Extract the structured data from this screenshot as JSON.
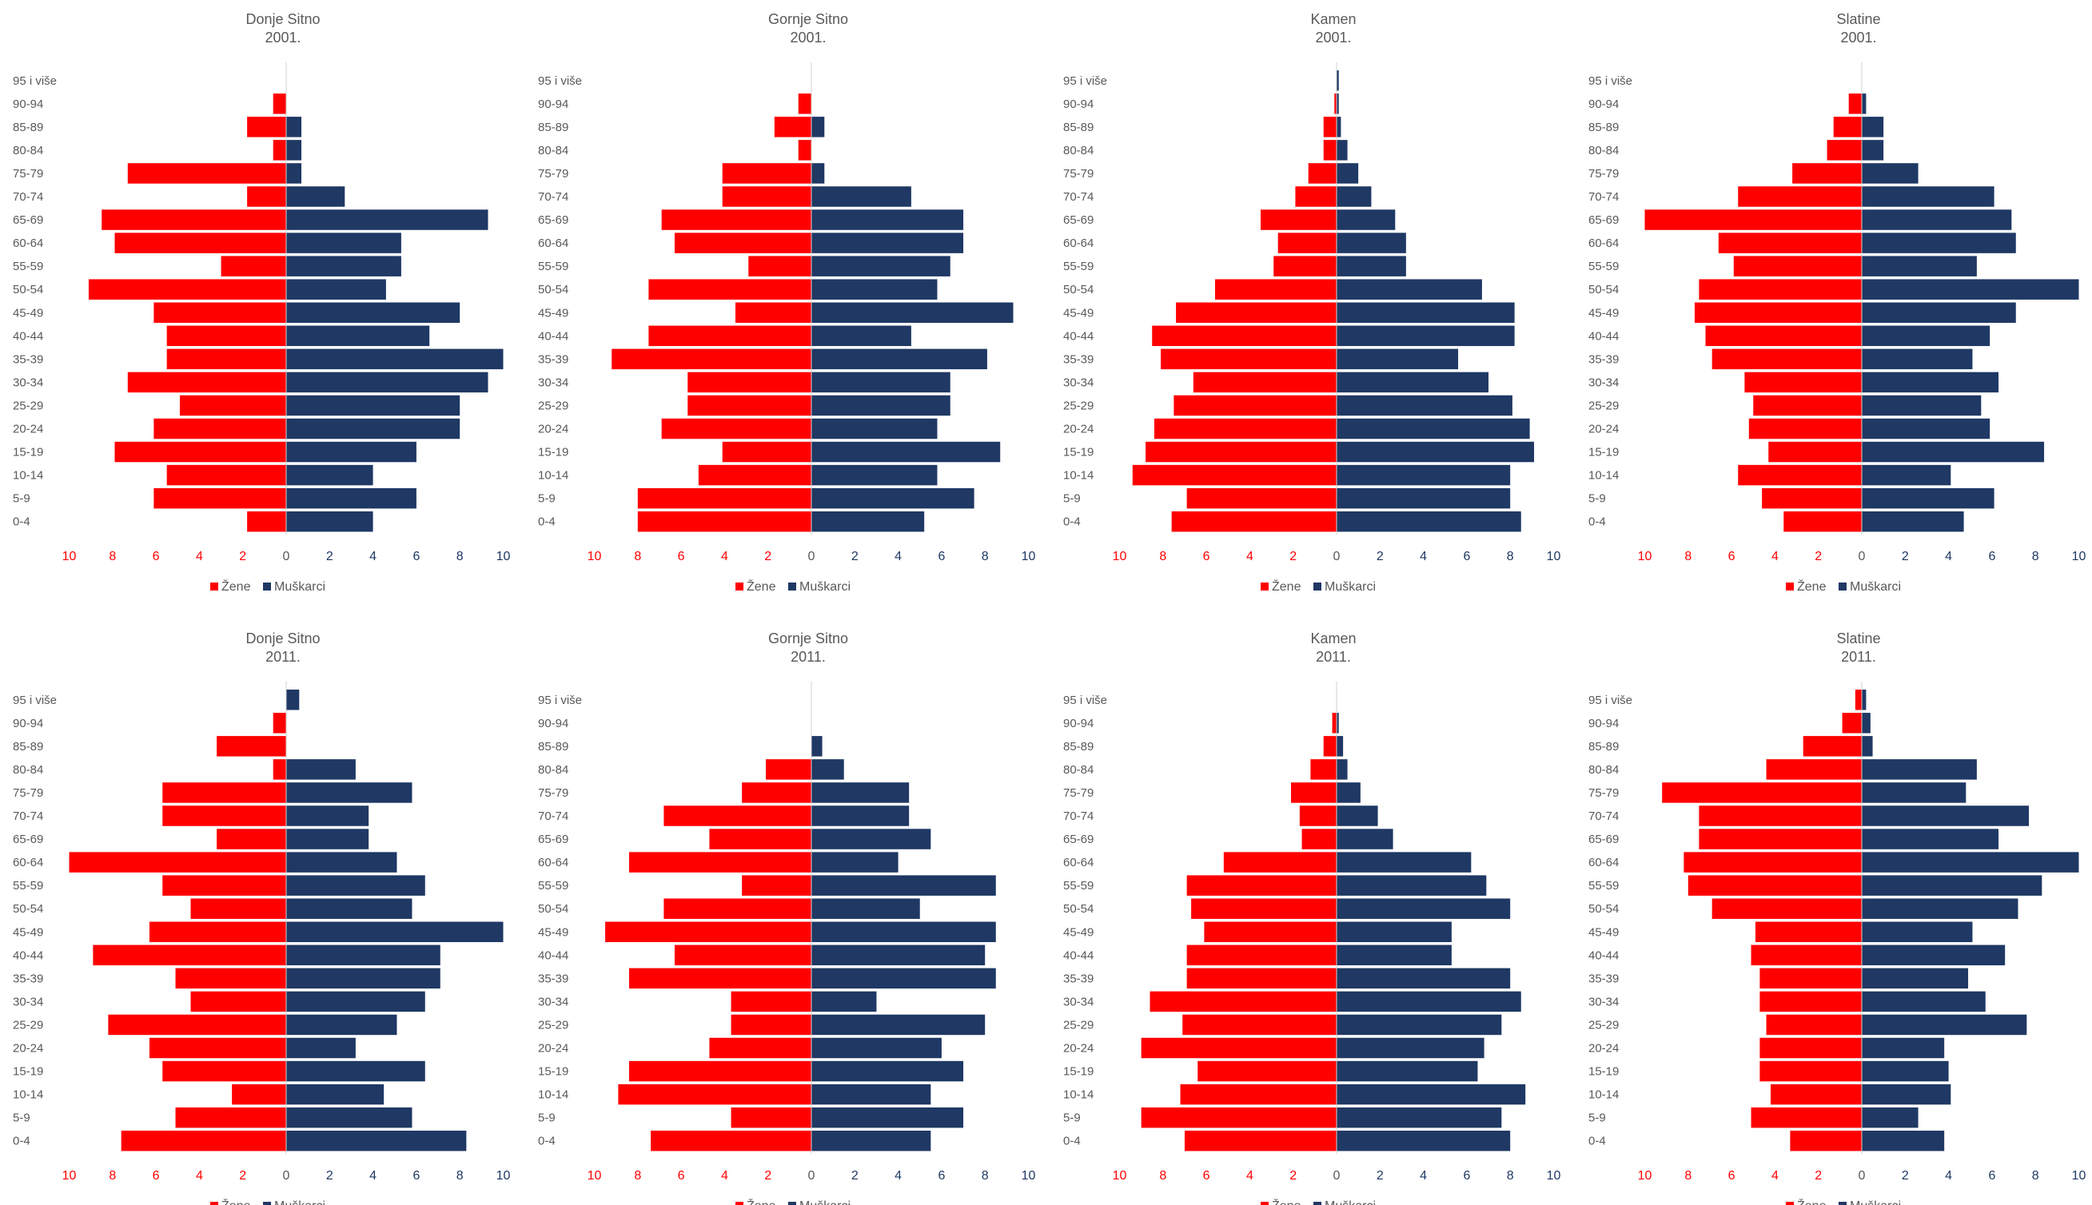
{
  "colors": {
    "women": "#ff0000",
    "men": "#1f3864",
    "text": "#595959",
    "axis": "#d0d0d0"
  },
  "legend": {
    "women": "Žene",
    "men": "Muškarci"
  },
  "age_groups": [
    "0-4",
    "5-9",
    "10-14",
    "15-19",
    "20-24",
    "25-29",
    "30-34",
    "35-39",
    "40-44",
    "45-49",
    "50-54",
    "55-59",
    "60-64",
    "65-69",
    "70-74",
    "75-79",
    "80-84",
    "85-89",
    "90-94",
    "95 i više"
  ],
  "x_ticks": [
    "10",
    "8",
    "6",
    "4",
    "2",
    "0",
    "2",
    "4",
    "6",
    "8",
    "10"
  ],
  "chart_data": [
    {
      "type": "bar",
      "orientation": "horizontal",
      "title": "Donje Sitno",
      "subtitle": "2001.",
      "xlim": [
        -10,
        10
      ],
      "series": [
        {
          "name": "Žene",
          "values": [
            1.8,
            6.1,
            5.5,
            7.9,
            6.1,
            4.9,
            7.3,
            5.5,
            5.5,
            6.1,
            9.1,
            3.0,
            7.9,
            8.5,
            1.8,
            7.3,
            0.6,
            1.8,
            0.6,
            0
          ]
        },
        {
          "name": "Muškarci",
          "values": [
            4.0,
            6.0,
            4.0,
            6.0,
            8.0,
            8.0,
            9.3,
            10.0,
            6.6,
            8.0,
            4.6,
            5.3,
            5.3,
            9.3,
            2.7,
            0.7,
            0.7,
            0.7,
            0,
            0
          ]
        }
      ]
    },
    {
      "type": "bar",
      "orientation": "horizontal",
      "title": "Gornje Sitno",
      "subtitle": "2001.",
      "xlim": [
        -10,
        10
      ],
      "series": [
        {
          "name": "Žene",
          "values": [
            8.0,
            8.0,
            5.2,
            4.1,
            6.9,
            5.7,
            5.7,
            9.2,
            7.5,
            3.5,
            7.5,
            2.9,
            6.3,
            6.9,
            4.1,
            4.1,
            0.6,
            1.7,
            0.6,
            0
          ]
        },
        {
          "name": "Muškarci",
          "values": [
            5.2,
            7.5,
            5.8,
            8.7,
            5.8,
            6.4,
            6.4,
            8.1,
            4.6,
            9.3,
            5.8,
            6.4,
            7.0,
            7.0,
            4.6,
            0.6,
            0,
            0.6,
            0,
            0
          ]
        }
      ]
    },
    {
      "type": "bar",
      "orientation": "horizontal",
      "title": "Kamen",
      "subtitle": "2001.",
      "xlim": [
        -10,
        10
      ],
      "series": [
        {
          "name": "Žene",
          "values": [
            7.6,
            6.9,
            9.4,
            8.8,
            8.4,
            7.5,
            6.6,
            8.1,
            8.5,
            7.4,
            5.6,
            2.9,
            2.7,
            3.5,
            1.9,
            1.3,
            0.6,
            0.6,
            0.1,
            0
          ]
        },
        {
          "name": "Muškarci",
          "values": [
            8.5,
            8.0,
            8.0,
            9.1,
            8.9,
            8.1,
            7.0,
            5.6,
            8.2,
            8.2,
            6.7,
            3.2,
            3.2,
            2.7,
            1.6,
            1.0,
            0.5,
            0.2,
            0.1,
            0.1
          ]
        }
      ]
    },
    {
      "type": "bar",
      "orientation": "horizontal",
      "title": "Slatine",
      "subtitle": "2001.",
      "xlim": [
        -10,
        10
      ],
      "series": [
        {
          "name": "Žene",
          "values": [
            3.6,
            4.6,
            5.7,
            4.3,
            5.2,
            5.0,
            5.4,
            6.9,
            7.2,
            7.7,
            7.5,
            5.9,
            6.6,
            10.0,
            5.7,
            3.2,
            1.6,
            1.3,
            0.6,
            0
          ]
        },
        {
          "name": "Muškarci",
          "values": [
            4.7,
            6.1,
            4.1,
            8.4,
            5.9,
            5.5,
            6.3,
            5.1,
            5.9,
            7.1,
            10.0,
            5.3,
            7.1,
            6.9,
            6.1,
            2.6,
            1.0,
            1.0,
            0.2,
            0
          ]
        }
      ]
    },
    {
      "type": "bar",
      "orientation": "horizontal",
      "title": "Donje Sitno",
      "subtitle": "2011.",
      "xlim": [
        -10,
        10
      ],
      "series": [
        {
          "name": "Žene",
          "values": [
            7.6,
            5.1,
            2.5,
            5.7,
            6.3,
            8.2,
            4.4,
            5.1,
            8.9,
            6.3,
            4.4,
            5.7,
            10.0,
            3.2,
            5.7,
            5.7,
            0.6,
            3.2,
            0.6,
            0
          ]
        },
        {
          "name": "Muškarci",
          "values": [
            8.3,
            5.8,
            4.5,
            6.4,
            3.2,
            5.1,
            6.4,
            7.1,
            7.1,
            10.0,
            5.8,
            6.4,
            5.1,
            3.8,
            3.8,
            5.8,
            3.2,
            0,
            0,
            0.6
          ]
        }
      ]
    },
    {
      "type": "bar",
      "orientation": "horizontal",
      "title": "Gornje Sitno",
      "subtitle": "2011.",
      "xlim": [
        -10,
        10
      ],
      "series": [
        {
          "name": "Žene",
          "values": [
            7.4,
            3.7,
            8.9,
            8.4,
            4.7,
            3.7,
            3.7,
            8.4,
            6.3,
            9.5,
            6.8,
            3.2,
            8.4,
            4.7,
            6.8,
            3.2,
            2.1,
            0,
            0,
            0
          ]
        },
        {
          "name": "Muškarci",
          "values": [
            5.5,
            7.0,
            5.5,
            7.0,
            6.0,
            8.0,
            3.0,
            8.5,
            8.0,
            8.5,
            5.0,
            8.5,
            4.0,
            5.5,
            4.5,
            4.5,
            1.5,
            0.5,
            0,
            0
          ]
        }
      ]
    },
    {
      "type": "bar",
      "orientation": "horizontal",
      "title": "Kamen",
      "subtitle": "2011.",
      "xlim": [
        -10,
        10
      ],
      "series": [
        {
          "name": "Žene",
          "values": [
            7.0,
            9.0,
            7.2,
            6.4,
            9.0,
            7.1,
            8.6,
            6.9,
            6.9,
            6.1,
            6.7,
            6.9,
            5.2,
            1.6,
            1.7,
            2.1,
            1.2,
            0.6,
            0.2,
            0
          ]
        },
        {
          "name": "Muškarci",
          "values": [
            8.0,
            7.6,
            8.7,
            6.5,
            6.8,
            7.6,
            8.5,
            8.0,
            5.3,
            5.3,
            8.0,
            6.9,
            6.2,
            2.6,
            1.9,
            1.1,
            0.5,
            0.3,
            0.1,
            0
          ]
        }
      ]
    },
    {
      "type": "bar",
      "orientation": "horizontal",
      "title": "Slatine",
      "subtitle": "2011.",
      "xlim": [
        -10,
        10
      ],
      "series": [
        {
          "name": "Žene",
          "values": [
            3.3,
            5.1,
            4.2,
            4.7,
            4.7,
            4.4,
            4.7,
            4.7,
            5.1,
            4.9,
            6.9,
            8.0,
            8.2,
            7.5,
            7.5,
            9.2,
            4.4,
            2.7,
            0.9,
            0.3
          ]
        },
        {
          "name": "Muškarci",
          "values": [
            3.8,
            2.6,
            4.1,
            4.0,
            3.8,
            7.6,
            5.7,
            4.9,
            6.6,
            5.1,
            7.2,
            8.3,
            10.0,
            6.3,
            7.7,
            4.8,
            5.3,
            0.5,
            0.4,
            0.2
          ]
        }
      ]
    }
  ]
}
